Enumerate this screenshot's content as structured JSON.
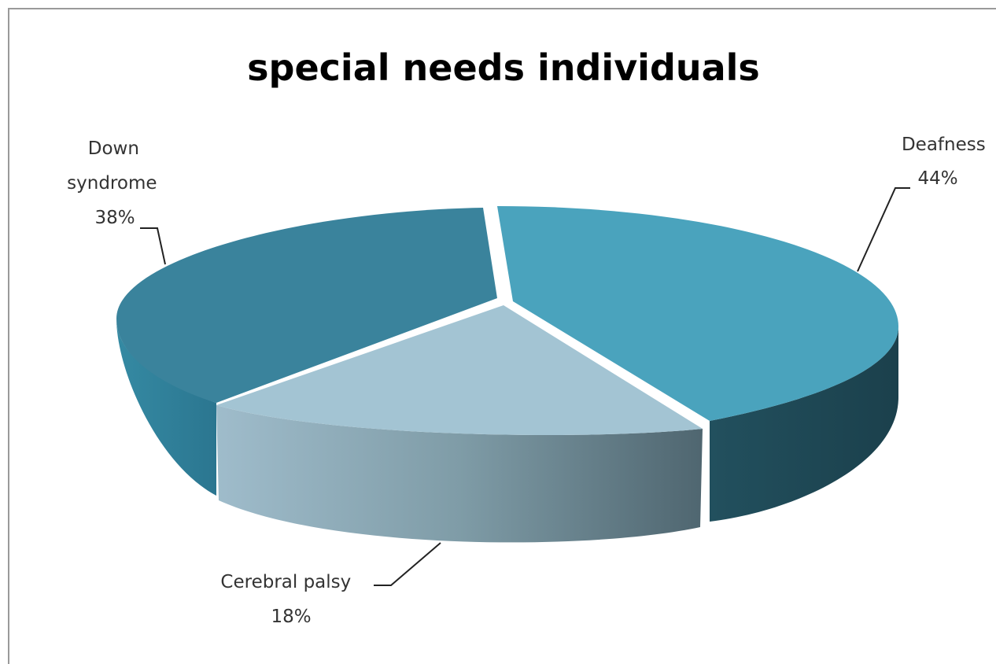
{
  "chart_data": {
    "type": "pie",
    "title": "special needs individuals",
    "slices": [
      {
        "name": "Deafness",
        "value": 44,
        "label": "44%",
        "color": "#4aa3bd",
        "side_color": "#1f4a57"
      },
      {
        "name": "Cerebral palsy",
        "value": 18,
        "label": "18%",
        "color": "#a3c4d3",
        "side_color": "#7f9ca8"
      },
      {
        "name": "Down syndrome",
        "value": 38,
        "label": "38%",
        "color": "#3a839c",
        "side_color": "#2e7a92"
      }
    ],
    "label_lines": {
      "down_syndrome": [
        "Down",
        "syndrome",
        "38%"
      ],
      "deafness": [
        "Deafness",
        "44%"
      ],
      "cerebral_palsy": [
        "Cerebral palsy",
        "18%"
      ]
    },
    "style": "3d-exploded",
    "legend": "none"
  }
}
